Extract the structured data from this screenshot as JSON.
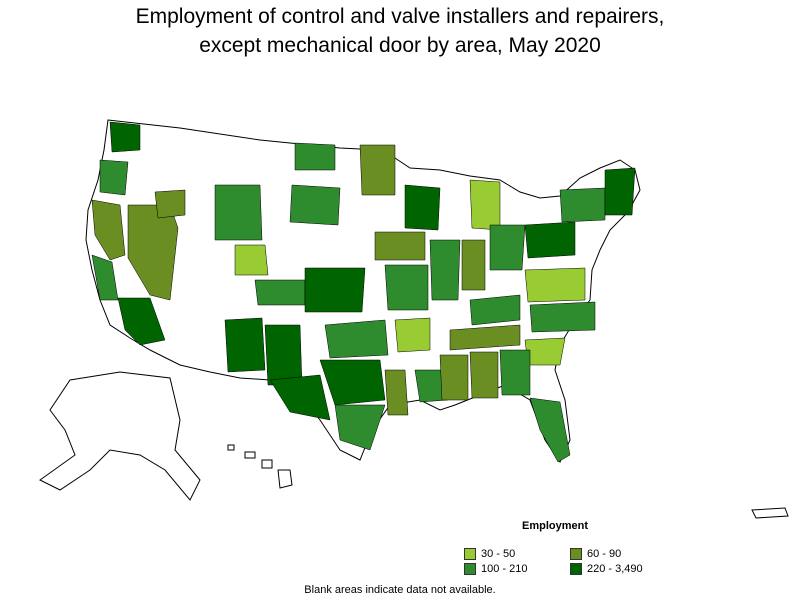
{
  "title": {
    "line1": "Employment of control and valve installers and repairers,",
    "line2": "except mechanical door by area, May 2020"
  },
  "legend": {
    "title": "Employment",
    "items": [
      {
        "label": "30 - 50",
        "color": "#99cc33"
      },
      {
        "label": "60 - 90",
        "color": "#6b8e23"
      },
      {
        "label": "100 - 210",
        "color": "#2e8b2e"
      },
      {
        "label": "220 - 3,490",
        "color": "#006400"
      }
    ]
  },
  "footnote": "Blank areas indicate data not available.",
  "colors": {
    "no_data": "#ffffff",
    "border": "#000000"
  }
}
